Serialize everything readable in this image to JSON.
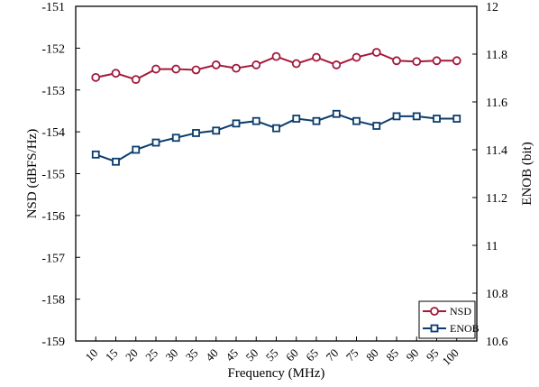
{
  "chart_data": {
    "type": "line",
    "xlabel": "Frequency (MHz)",
    "ylabel_left": "NSD (dBFS/Hz)",
    "ylabel_right": "ENOB (bit)",
    "x": [
      10,
      15,
      20,
      25,
      30,
      35,
      40,
      45,
      50,
      55,
      60,
      65,
      70,
      75,
      80,
      85,
      90,
      95,
      100
    ],
    "x_tick_labels": [
      "10",
      "15",
      "20",
      "25",
      "30",
      "35",
      "40",
      "45",
      "50",
      "55",
      "60",
      "65",
      "70",
      "75",
      "80",
      "85",
      "90",
      "95",
      "100"
    ],
    "ylim_left": [
      -159,
      -151
    ],
    "yticks_left": [
      "-151",
      "-152",
      "-153",
      "-154",
      "-155",
      "-156",
      "-157",
      "-158",
      "-159"
    ],
    "ylim_right": [
      10.6,
      12
    ],
    "yticks_right": [
      "12",
      "11.8",
      "11.6",
      "11.4",
      "11.2",
      "11",
      "10.8",
      "10.6"
    ],
    "grid": false,
    "legend_position": "bottom-right",
    "series": [
      {
        "name": "NSD",
        "axis": "left",
        "marker": "circle",
        "color": "#a3193b",
        "values": [
          -152.7,
          -152.6,
          -152.75,
          -152.5,
          -152.5,
          -152.52,
          -152.4,
          -152.48,
          -152.4,
          -152.2,
          -152.37,
          -152.22,
          -152.4,
          -152.22,
          -152.1,
          -152.3,
          -152.32,
          -152.3,
          -152.3
        ]
      },
      {
        "name": "ENOB",
        "axis": "right",
        "marker": "square",
        "color": "#0c3d6e",
        "values": [
          11.38,
          11.35,
          11.4,
          11.43,
          11.45,
          11.47,
          11.48,
          11.51,
          11.52,
          11.49,
          11.53,
          11.52,
          11.55,
          11.52,
          11.5,
          11.54,
          11.54,
          11.53,
          11.53
        ]
      }
    ]
  }
}
